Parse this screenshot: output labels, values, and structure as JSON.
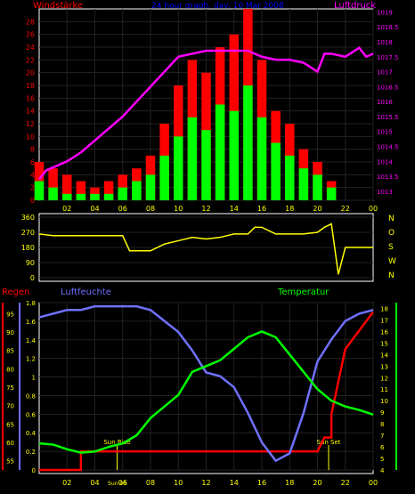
{
  "header": {
    "left_label": "Windstärke",
    "title": "24 hour graph, day: 10 Mar 2008",
    "right_label": "Luftdruck"
  },
  "colors": {
    "wind_axis": "#ff0000",
    "pressure_axis": "#ff00ff",
    "title": "#0000ff",
    "gust": "#ff0000",
    "wind": "#00ff00",
    "direction": "#ffff00",
    "rain": "#ff0000",
    "humidity": "#7070ff",
    "temperature": "#00ff00",
    "sun": "#ffff00",
    "axis_text": "#ffff00"
  },
  "lower_labels": {
    "rain": "Regen",
    "humidity": "Luftfeuchte",
    "temperature": "Temperatur",
    "sunrise": "Sun Rise",
    "sunset": "Sun Set",
    "sunrise_time": "Sun 06"
  },
  "chart_data": [
    {
      "type": "bar",
      "name": "wind-pressure",
      "x_ticks": [
        "02",
        "04",
        "06",
        "08",
        "10",
        "12",
        "14",
        "16",
        "18",
        "20",
        "22",
        "00"
      ],
      "y_left_ticks": [
        "0",
        "2",
        "4",
        "6",
        "8",
        "10",
        "12",
        "14",
        "16",
        "18",
        "20",
        "22",
        "24",
        "26",
        "28"
      ],
      "y_left_lim": [
        0,
        30
      ],
      "y_right_ticks": [
        "1013",
        "1013.5",
        "1014",
        "1014.5",
        "1015",
        "1015.5",
        "1016",
        "1016.5",
        "1017",
        "1017.5",
        "1018",
        "1018.5",
        "1019"
      ],
      "y_right_lim": [
        1012.7,
        1019.1
      ],
      "x_lim_hours": [
        0,
        24
      ],
      "series": [
        {
          "role": "pressure",
          "x": [
            0,
            0.5,
            1,
            2,
            3,
            4,
            5,
            6,
            7,
            8,
            9,
            10,
            11,
            12,
            13,
            14,
            15,
            16,
            17,
            18,
            19,
            20,
            20.5,
            21,
            22,
            23,
            23.5,
            24
          ],
          "values": [
            1013.4,
            1013.7,
            1013.8,
            1014.0,
            1014.3,
            1014.7,
            1015.1,
            1015.5,
            1016.0,
            1016.5,
            1017.0,
            1017.5,
            1017.6,
            1017.7,
            1017.7,
            1017.7,
            1017.7,
            1017.5,
            1017.4,
            1017.4,
            1017.3,
            1017.0,
            1017.6,
            1017.6,
            1017.5,
            1017.8,
            1017.5,
            1017.6
          ]
        },
        {
          "role": "gust",
          "x": [
            0,
            1,
            2,
            3,
            4,
            5,
            6,
            7,
            8,
            9,
            10,
            11,
            12,
            13,
            14,
            15,
            16,
            17,
            18,
            19,
            20,
            21,
            22,
            23,
            24
          ],
          "values": [
            6,
            5,
            4,
            3,
            2,
            3,
            4,
            5,
            7,
            12,
            18,
            22,
            20,
            24,
            26,
            30,
            22,
            14,
            12,
            8,
            6,
            3,
            0,
            0,
            0
          ]
        },
        {
          "role": "wind",
          "x": [
            0,
            1,
            2,
            3,
            4,
            5,
            6,
            7,
            8,
            9,
            10,
            11,
            12,
            13,
            14,
            15,
            16,
            17,
            18,
            19,
            20,
            21,
            22,
            23,
            24
          ],
          "values": [
            3,
            2,
            1,
            1,
            1,
            1,
            2,
            3,
            4,
            7,
            10,
            13,
            11,
            15,
            14,
            18,
            13,
            9,
            7,
            5,
            4,
            2,
            0,
            0,
            0
          ]
        }
      ]
    },
    {
      "type": "line",
      "name": "wind-direction",
      "y_right_ticks": [
        "N",
        "W",
        "S",
        "O",
        "N"
      ],
      "y_left_ticks": [
        "0",
        "90",
        "180",
        "270",
        "360"
      ],
      "y_lim": [
        0,
        360
      ],
      "x_lim_hours": [
        0,
        24
      ],
      "x": [
        0,
        1,
        2,
        3,
        4,
        5,
        6,
        6.5,
        7,
        8,
        9,
        10,
        11,
        12,
        13,
        14,
        15,
        15.5,
        16,
        17,
        18,
        19,
        20,
        20.5,
        21,
        21.5,
        22,
        23,
        24
      ],
      "values": [
        260,
        250,
        250,
        250,
        250,
        250,
        250,
        160,
        160,
        160,
        200,
        220,
        240,
        230,
        240,
        260,
        260,
        300,
        300,
        260,
        260,
        260,
        270,
        300,
        320,
        20,
        180,
        180,
        180
      ]
    },
    {
      "type": "line",
      "name": "rain-humidity-temperature",
      "x_ticks": [
        "02",
        "04",
        "06",
        "08",
        "10",
        "12",
        "14",
        "16",
        "18",
        "20",
        "22",
        "00"
      ],
      "y_rain_ticks": [
        "0",
        "0.2",
        "0.4",
        "0.6",
        "0.8",
        "1",
        "1.2",
        "1.4",
        "1.6",
        "1.8"
      ],
      "y_rain_lim": [
        0,
        1.8
      ],
      "y_humidity_ticks": [
        "55",
        "60",
        "65",
        "70",
        "75",
        "80",
        "85",
        "90",
        "95"
      ],
      "y_humidity_lim": [
        52.5,
        98
      ],
      "y_temp_ticks": [
        "4",
        "5",
        "6",
        "7",
        "8",
        "9",
        "10",
        "11",
        "12",
        "13",
        "14",
        "15",
        "16",
        "17",
        "18"
      ],
      "y_temp_lim": [
        4,
        18.5
      ],
      "x_lim_hours": [
        0,
        24
      ],
      "series": [
        {
          "name": "Regen",
          "x": [
            0,
            3,
            3,
            4,
            5,
            6,
            8,
            10,
            12,
            14,
            16,
            18,
            20,
            20.5,
            21,
            21,
            22,
            23,
            24
          ],
          "values": [
            0,
            0,
            0.2,
            0.2,
            0.2,
            0.2,
            0.2,
            0.2,
            0.2,
            0.2,
            0.2,
            0.2,
            0.2,
            0.35,
            0.35,
            0.6,
            1.3,
            1.5,
            1.7
          ]
        },
        {
          "name": "Luftfeuchte",
          "x": [
            0,
            1,
            2,
            3,
            4,
            5,
            6,
            7,
            8,
            9,
            10,
            11,
            12,
            13,
            14,
            15,
            16,
            17,
            18,
            19,
            20,
            21,
            22,
            23,
            24
          ],
          "values": [
            94,
            95,
            96,
            96,
            97,
            97,
            97,
            97,
            96,
            93,
            90,
            85,
            79,
            78,
            75,
            68,
            60,
            55,
            57,
            68,
            82,
            88,
            93,
            95,
            96
          ]
        },
        {
          "name": "Temperatur",
          "x": [
            0,
            1,
            2,
            3,
            4,
            5,
            6,
            7,
            8,
            9,
            10,
            11,
            12,
            13,
            14,
            15,
            16,
            17,
            18,
            19,
            20,
            21,
            22,
            23,
            24
          ],
          "values": [
            6.3,
            6.2,
            5.8,
            5.5,
            5.6,
            6.0,
            6.3,
            7.0,
            8.5,
            9.5,
            10.5,
            12.5,
            13.0,
            13.5,
            14.5,
            15.5,
            16.0,
            15.5,
            14.0,
            12.5,
            11.0,
            10.0,
            9.5,
            9.2,
            8.8
          ]
        }
      ]
    }
  ]
}
